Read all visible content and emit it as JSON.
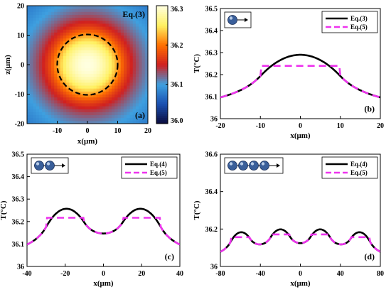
{
  "chart_data": [
    {
      "id": "a",
      "type": "heatmap",
      "panel_label": "(a)",
      "annotation": "Eq.(3)",
      "xlabel": "x(μm)",
      "ylabel": "z(μm)",
      "xlim": [
        -20,
        20
      ],
      "ylim": [
        -20,
        20
      ],
      "xticks": [
        "-10",
        "0",
        "10",
        "20"
      ],
      "yticks": [
        "20",
        "10",
        "0",
        "-10",
        "-20"
      ],
      "colorbar": {
        "min": 36.0,
        "max": 36.3,
        "ticks": [
          "36.3",
          "36.2",
          "36.1",
          "36.0"
        ]
      },
      "field": {
        "center_value": 36.3,
        "particle_radius": 10,
        "far_value": 36.06
      },
      "colors": [
        "#0a0a3a",
        "#1a4fb0",
        "#3ea0e0",
        "#d02020",
        "#ff7000",
        "#fff060",
        "#ffffe0"
      ]
    },
    {
      "id": "b",
      "type": "line",
      "panel_label": "(b)",
      "xlabel": "x(μm)",
      "ylabel": "T(°C)",
      "xlim": [
        -20,
        20
      ],
      "ylim": [
        36,
        36.5
      ],
      "xticks": [
        "-20",
        "-10",
        "0",
        "10",
        "20"
      ],
      "yticks": [
        "36.5",
        "36.4",
        "36.3",
        "36.2",
        "36.1",
        "36"
      ],
      "particles": 1,
      "particle_x": [
        0
      ],
      "radius": 10,
      "series": [
        {
          "name": "Eq.(3)",
          "style": "solid",
          "color": "#000000",
          "source": "exact"
        },
        {
          "name": "Eq.(5)",
          "style": "dashed",
          "color": "#ee33ee",
          "source": "average"
        }
      ],
      "model": {
        "base": 36.0,
        "peak": 0.29
      }
    },
    {
      "id": "c",
      "type": "line",
      "panel_label": "(c)",
      "xlabel": "x(μm)",
      "ylabel": "T(°C)",
      "xlim": [
        -40,
        40
      ],
      "ylim": [
        36,
        36.5
      ],
      "xticks": [
        "-40",
        "-20",
        "0",
        "20",
        "40"
      ],
      "yticks": [
        "36.5",
        "36.4",
        "36.3",
        "36.2",
        "36.1",
        "36"
      ],
      "particles": 2,
      "particle_x": [
        -20,
        20
      ],
      "radius": 10,
      "series": [
        {
          "name": "Eq.(4)",
          "style": "solid",
          "color": "#000000",
          "source": "exact"
        },
        {
          "name": "Eq.(5)",
          "style": "dashed",
          "color": "#ee33ee",
          "source": "average"
        }
      ],
      "model": {
        "base": 36.0,
        "peak": 0.22
      }
    },
    {
      "id": "d",
      "type": "line",
      "panel_label": "(d)",
      "xlabel": "x(μm)",
      "ylabel": "T(°C)",
      "xlim": [
        -80,
        80
      ],
      "ylim": [
        36,
        36.6
      ],
      "xticks": [
        "-80",
        "-40",
        "0",
        "40",
        "80"
      ],
      "yticks": [
        "36.6",
        "36.4",
        "36.2",
        "36"
      ],
      "particles": 4,
      "particle_x": [
        -60,
        -20,
        20,
        60
      ],
      "radius": 10,
      "series": [
        {
          "name": "Eq.(4)",
          "style": "solid",
          "color": "#000000",
          "source": "exact"
        },
        {
          "name": "Eq.(5)",
          "style": "dashed",
          "color": "#ee33ee",
          "source": "average"
        }
      ],
      "model": {
        "base": 36.0,
        "peak": 0.14
      }
    }
  ]
}
